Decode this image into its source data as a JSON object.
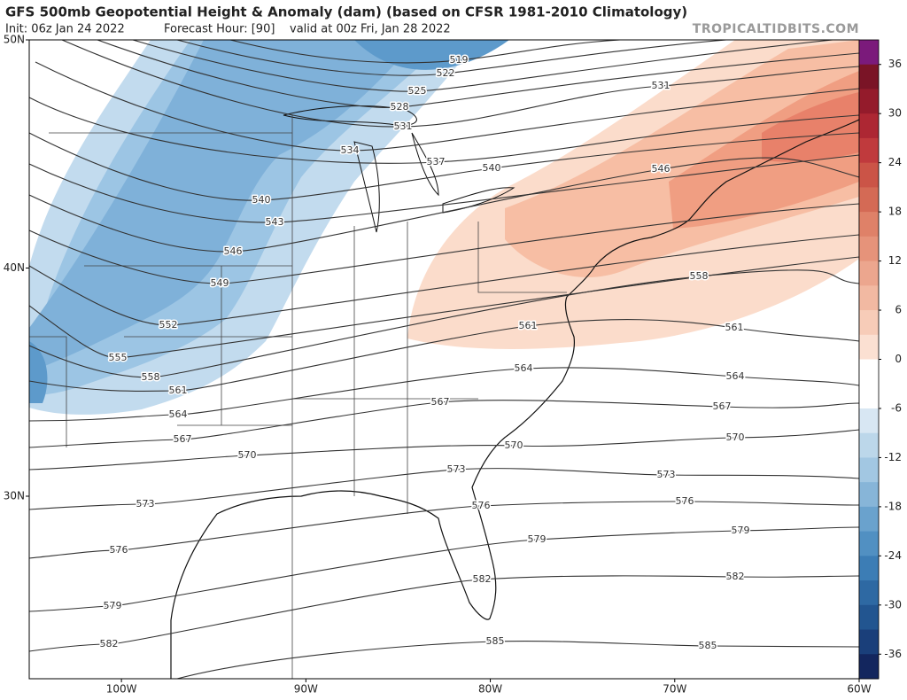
{
  "header": {
    "title": "GFS 500mb Geopotential Height & Anomaly (dam) (based on CFSR 1981-2010 Climatology)",
    "init": "Init: 06z Jan 24 2022",
    "forecast_hour": "Forecast Hour: [90]",
    "valid": "valid at 00z Fri, Jan 28 2022",
    "watermark": "TROPICALTIDBITS.COM"
  },
  "map": {
    "xlim": [
      -105,
      -60
    ],
    "ylim": [
      22,
      50
    ],
    "xticks": [
      {
        "value": -100,
        "label": "100W"
      },
      {
        "value": -90,
        "label": "90W"
      },
      {
        "value": -80,
        "label": "80W"
      },
      {
        "value": -70,
        "label": "70W"
      },
      {
        "value": -60,
        "label": "60W"
      }
    ],
    "yticks": [
      {
        "value": 50,
        "label": "50N"
      },
      {
        "value": 40,
        "label": "40N"
      },
      {
        "value": 30,
        "label": "30N"
      }
    ],
    "contour_labels": [
      519,
      522,
      525,
      528,
      531,
      531,
      534,
      537,
      540,
      540,
      543,
      546,
      546,
      549,
      552,
      555,
      558,
      558,
      561,
      561,
      561,
      564,
      564,
      564,
      567,
      567,
      567,
      570,
      570,
      570,
      573,
      573,
      573,
      576,
      576,
      576,
      579,
      579,
      579,
      582,
      582,
      582,
      585,
      585
    ]
  },
  "colorbar": {
    "lim": [
      -39,
      39
    ],
    "colors": [
      "#7b1a7b",
      "#7a1426",
      "#941b2b",
      "#ad2733",
      "#c03a3d",
      "#cb5447",
      "#d46a55",
      "#df8168",
      "#e6937a",
      "#eca68e",
      "#f2b9a2",
      "#f7ccb8",
      "#fbe0d2",
      "#ffffff",
      "#ffffff",
      "#d8e7f3",
      "#bcd7ea",
      "#a2c7e2",
      "#87b5d8",
      "#6aa2cd",
      "#5190c2",
      "#3c7db5",
      "#2e69a3",
      "#225590",
      "#1a3f7a",
      "#13265e"
    ],
    "ticks": [
      36,
      30,
      24,
      18,
      12,
      6,
      0,
      -6,
      -12,
      -18,
      -24,
      -30,
      -36
    ]
  }
}
